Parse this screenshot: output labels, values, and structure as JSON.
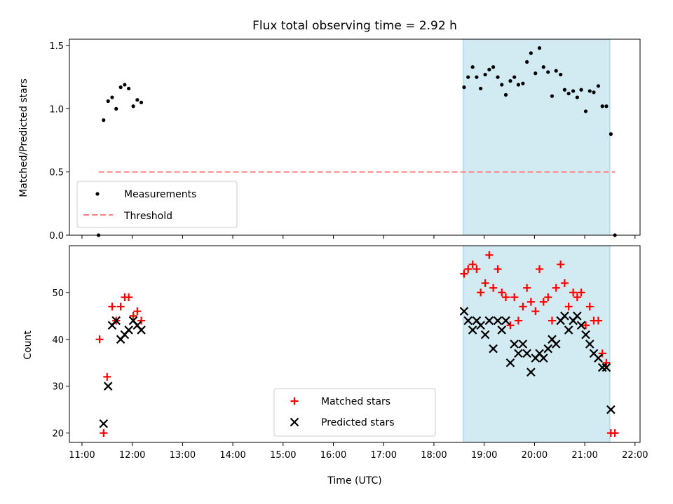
{
  "chart_data": [
    {
      "type": "scatter",
      "title": "Flux total observing time = 2.92 h",
      "xlabel": "",
      "ylabel": "Matched/Predicted stars",
      "x_unit": "hours (UTC)",
      "xlim": [
        10.75,
        22.1
      ],
      "ylim": [
        0,
        1.55
      ],
      "yticks": [
        0.0,
        0.5,
        1.0,
        1.5
      ],
      "ytick_labels": [
        "0.0",
        "0.5",
        "1.0",
        "1.5"
      ],
      "highlight_span": {
        "x": [
          18.58,
          21.5
        ],
        "color": "#add8e6"
      },
      "legend": {
        "placement": "lower-left",
        "entries": [
          "Measurements",
          "Threshold"
        ]
      },
      "series": [
        {
          "name": "Measurements",
          "kind": "scatter",
          "color": "#000000",
          "x": [
            11.33,
            11.43,
            11.52,
            11.6,
            11.68,
            11.77,
            11.85,
            11.93,
            12.02,
            12.1,
            12.18,
            18.6,
            18.68,
            18.77,
            18.85,
            18.93,
            19.02,
            19.1,
            19.18,
            19.27,
            19.35,
            19.43,
            19.52,
            19.6,
            19.68,
            19.77,
            19.85,
            19.93,
            20.02,
            20.1,
            20.18,
            20.27,
            20.35,
            20.43,
            20.52,
            20.6,
            20.68,
            20.77,
            20.85,
            20.93,
            21.02,
            21.1,
            21.18,
            21.27,
            21.35,
            21.43,
            21.52,
            21.6
          ],
          "y": [
            0.0,
            0.91,
            1.06,
            1.09,
            1.0,
            1.17,
            1.19,
            1.16,
            1.02,
            1.07,
            1.05,
            1.17,
            1.25,
            1.33,
            1.25,
            1.16,
            1.27,
            1.31,
            1.33,
            1.25,
            1.19,
            1.11,
            1.22,
            1.25,
            1.19,
            1.2,
            1.37,
            1.44,
            1.28,
            1.48,
            1.33,
            1.29,
            1.1,
            1.3,
            1.27,
            1.15,
            1.12,
            1.14,
            1.09,
            1.15,
            0.98,
            1.14,
            1.13,
            1.18,
            1.02,
            1.02,
            0.8,
            0.0
          ]
        },
        {
          "name": "Threshold",
          "kind": "dashed-line",
          "color": "#ff7f7f",
          "x": [
            11.33,
            21.6
          ],
          "y": [
            0.5,
            0.5
          ]
        }
      ]
    },
    {
      "type": "scatter",
      "title": "",
      "xlabel": "Time (UTC)",
      "ylabel": "Count",
      "x_unit": "hours (UTC)",
      "xlim": [
        10.75,
        22.1
      ],
      "ylim": [
        18,
        60
      ],
      "yticks": [
        20,
        30,
        40,
        50
      ],
      "ytick_labels": [
        "20",
        "30",
        "40",
        "50"
      ],
      "xticks": [
        11,
        12,
        13,
        14,
        15,
        16,
        17,
        18,
        19,
        20,
        21,
        22
      ],
      "xtick_labels": [
        "11:00",
        "12:00",
        "13:00",
        "14:00",
        "15:00",
        "16:00",
        "17:00",
        "18:00",
        "19:00",
        "20:00",
        "21:00",
        "22:00"
      ],
      "highlight_span": {
        "x": [
          18.58,
          21.5
        ],
        "color": "#add8e6"
      },
      "legend": {
        "placement": "lower-center",
        "entries": [
          "Matched stars",
          "Predicted stars"
        ]
      },
      "series": [
        {
          "name": "Matched stars",
          "marker": "+",
          "color": "#ff0000",
          "x": [
            11.35,
            11.43,
            11.5,
            11.6,
            11.68,
            11.77,
            11.85,
            11.93,
            12.02,
            12.1,
            12.18,
            18.6,
            18.68,
            18.77,
            18.85,
            18.93,
            19.02,
            19.1,
            19.18,
            19.27,
            19.35,
            19.43,
            19.52,
            19.6,
            19.68,
            19.77,
            19.85,
            19.93,
            20.02,
            20.1,
            20.18,
            20.27,
            20.35,
            20.43,
            20.52,
            20.6,
            20.68,
            20.77,
            20.85,
            20.93,
            21.02,
            21.1,
            21.18,
            21.27,
            21.35,
            21.43,
            21.52,
            21.6
          ],
          "y": [
            40,
            20,
            32,
            47,
            44,
            47,
            49,
            49,
            45,
            46,
            44,
            54,
            55,
            56,
            55,
            50,
            52,
            58,
            51,
            55,
            50,
            49,
            43,
            49,
            44,
            47,
            51,
            48,
            46,
            55,
            48,
            49,
            44,
            51,
            56,
            52,
            47,
            50,
            49,
            50,
            43,
            47,
            44,
            44,
            37,
            35,
            20,
            20
          ]
        },
        {
          "name": "Predicted stars",
          "marker": "x",
          "color": "#000000",
          "x": [
            11.43,
            11.52,
            11.6,
            11.68,
            11.77,
            11.85,
            11.93,
            12.02,
            12.1,
            12.18,
            18.6,
            18.68,
            18.77,
            18.85,
            18.93,
            19.02,
            19.1,
            19.18,
            19.27,
            19.35,
            19.43,
            19.52,
            19.6,
            19.68,
            19.77,
            19.85,
            19.93,
            20.02,
            20.1,
            20.18,
            20.27,
            20.35,
            20.43,
            20.52,
            20.6,
            20.68,
            20.77,
            20.85,
            20.93,
            21.02,
            21.1,
            21.18,
            21.27,
            21.35,
            21.43,
            21.52
          ],
          "y": [
            22,
            30,
            43,
            44,
            40,
            41,
            42,
            44,
            43,
            42,
            46,
            44,
            42,
            44,
            43,
            41,
            44,
            38,
            44,
            42,
            44,
            35,
            39,
            37,
            39,
            37,
            33,
            36,
            37,
            36,
            38,
            40,
            39,
            44,
            45,
            42,
            44,
            45,
            43,
            41,
            39,
            37,
            36,
            34,
            34,
            25
          ]
        }
      ]
    }
  ]
}
